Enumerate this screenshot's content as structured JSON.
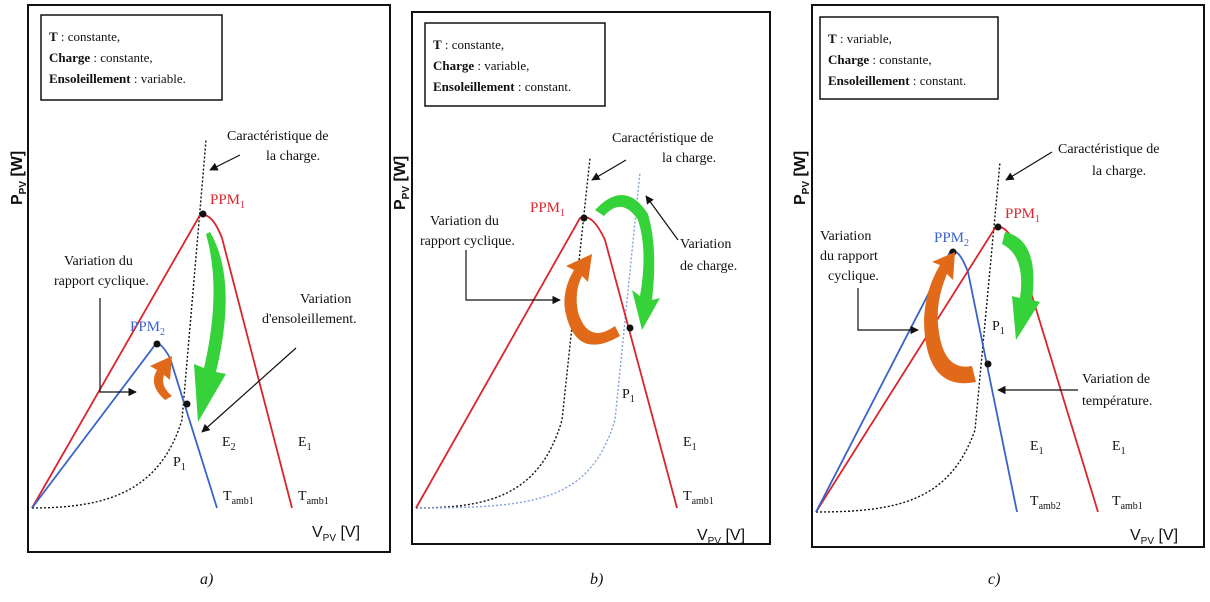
{
  "colors": {
    "red": "#d9252e",
    "blue": "#3a63c8",
    "light_blue": "#7fa0d8",
    "black": "#111111",
    "green": "#35d23a",
    "orange": "#e06a1a"
  },
  "panels": [
    {
      "id": "a",
      "caption": "a)",
      "y_label_main": "P",
      "y_label_sub": "PV",
      "y_label_unit": " [W]",
      "x_label_main": "V",
      "x_label_sub": "PV",
      "x_label_unit": " [V]",
      "conditions": [
        {
          "key": "T",
          "value": " : constante,"
        },
        {
          "key": "Charge",
          "value": " : constante,"
        },
        {
          "key": "Ensoleillement",
          "value": " : variable."
        }
      ],
      "load_label": [
        "Caractéristique de",
        "la charge."
      ],
      "duty_label": [
        "Variation du",
        "rapport cyclique."
      ],
      "variation_label": [
        "Variation",
        "d'ensoleillement."
      ],
      "ppm1": {
        "main": "PPM",
        "sub": "1"
      },
      "ppm2": {
        "main": "PPM",
        "sub": "2"
      },
      "p1": {
        "main": "P",
        "sub": "1"
      },
      "env_labels": [
        {
          "main": "E",
          "sub": "2"
        },
        {
          "main": "E",
          "sub": "1"
        },
        {
          "main": "T",
          "sub": "amb1"
        },
        {
          "main": "T",
          "sub": "amb1"
        }
      ]
    },
    {
      "id": "b",
      "caption": "b)",
      "y_label_main": "P",
      "y_label_sub": "PV",
      "y_label_unit": " [W]",
      "x_label_main": "V",
      "x_label_sub": "PV",
      "x_label_unit": " [V]",
      "conditions": [
        {
          "key": "T",
          "value": " : constante,"
        },
        {
          "key": "Charge",
          "value": " : variable,"
        },
        {
          "key": "Ensoleillement",
          "value": " : constant."
        }
      ],
      "load_label": [
        "Caractéristique de",
        "la charge."
      ],
      "duty_label": [
        "Variation du",
        "rapport cyclique."
      ],
      "variation_label": [
        "Variation",
        "de charge."
      ],
      "ppm1": {
        "main": "PPM",
        "sub": "1"
      },
      "p1": {
        "main": "P",
        "sub": "1"
      },
      "env_labels": [
        {
          "main": "E",
          "sub": "1"
        },
        {
          "main": "T",
          "sub": "amb1"
        }
      ]
    },
    {
      "id": "c",
      "caption": "c)",
      "y_label_main": "P",
      "y_label_sub": "PV",
      "y_label_unit": " [W]",
      "x_label_main": "V",
      "x_label_sub": "PV",
      "x_label_unit": " [V]",
      "conditions": [
        {
          "key": "T",
          "value": " : variable,"
        },
        {
          "key": "Charge",
          "value": " : constante,"
        },
        {
          "key": "Ensoleillement",
          "value": " : constant."
        }
      ],
      "load_label": [
        "Caractéristique de",
        "la charge."
      ],
      "duty_label": [
        "Variation",
        "du rapport",
        "cyclique."
      ],
      "variation_label": [
        "Variation de",
        "température."
      ],
      "ppm1": {
        "main": "PPM",
        "sub": "1"
      },
      "ppm2": {
        "main": "PPM",
        "sub": "2"
      },
      "p1": {
        "main": "P",
        "sub": "1"
      },
      "env_labels": [
        {
          "main": "E",
          "sub": "1"
        },
        {
          "main": "E",
          "sub": "1"
        },
        {
          "main": "T",
          "sub": "amb2"
        },
        {
          "main": "T",
          "sub": "amb1"
        }
      ]
    }
  ]
}
